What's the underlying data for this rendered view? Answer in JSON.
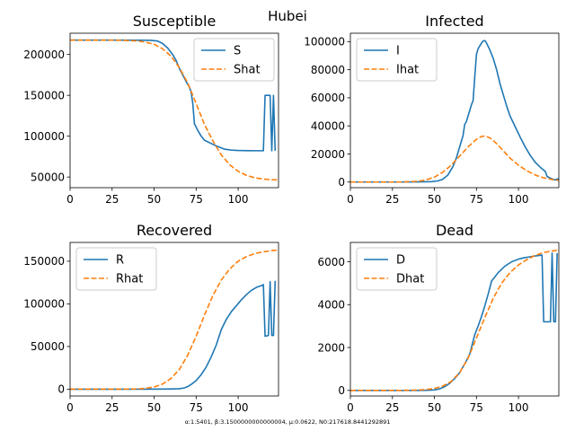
{
  "figure": {
    "suptitle": "Hubei",
    "footnote": "α:1.5401, β:3.1500000000000004, μ:0.0622, N0:217618.8441292891"
  },
  "colors": {
    "observed": "#1f77b4",
    "fitted": "#ff7f0e"
  },
  "chart_data": [
    {
      "type": "line",
      "title": "Susceptible",
      "xlim": [
        0,
        124
      ],
      "ylim": [
        37000,
        226000
      ],
      "xticks": [
        0,
        25,
        50,
        75,
        100
      ],
      "yticks": [
        50000,
        100000,
        150000,
        200000
      ],
      "legend_position": "top-right",
      "series": [
        {
          "name": "S",
          "style": "solid",
          "points": [
            [
              0,
              217600
            ],
            [
              10,
              217600
            ],
            [
              20,
              217600
            ],
            [
              30,
              217600
            ],
            [
              40,
              217500
            ],
            [
              48,
              217300
            ],
            [
              52,
              216500
            ],
            [
              55,
              213500
            ],
            [
              58,
              208000
            ],
            [
              61,
              200000
            ],
            [
              63,
              193000
            ],
            [
              65,
              183000
            ],
            [
              67,
              175000
            ],
            [
              69,
              167000
            ],
            [
              71,
              160000
            ],
            [
              72,
              154000
            ],
            [
              73,
              140000
            ],
            [
              74,
              115000
            ],
            [
              76,
              107000
            ],
            [
              78,
              100000
            ],
            [
              80,
              95000
            ],
            [
              83,
              92000
            ],
            [
              86,
              89000
            ],
            [
              89,
              86500
            ],
            [
              92,
              84000
            ],
            [
              96,
              83000
            ],
            [
              100,
              82500
            ],
            [
              106,
              82300
            ],
            [
              111,
              82200
            ],
            [
              115,
              82200
            ],
            [
              116,
              150000
            ],
            [
              119,
              150000
            ],
            [
              120,
              82200
            ],
            [
              121,
              150000
            ],
            [
              122,
              82200
            ]
          ]
        },
        {
          "name": "Shat",
          "style": "dashed",
          "points": [
            [
              0,
              217600
            ],
            [
              20,
              217600
            ],
            [
              30,
              217400
            ],
            [
              40,
              216500
            ],
            [
              45,
              215000
            ],
            [
              50,
              212500
            ],
            [
              55,
              207000
            ],
            [
              60,
              198000
            ],
            [
              65,
              184000
            ],
            [
              70,
              165000
            ],
            [
              75,
              140000
            ],
            [
              80,
              114000
            ],
            [
              85,
              94000
            ],
            [
              90,
              77000
            ],
            [
              95,
              65000
            ],
            [
              100,
              57000
            ],
            [
              105,
              52000
            ],
            [
              110,
              49000
            ],
            [
              115,
              47500
            ],
            [
              120,
              46800
            ],
            [
              124,
              46500
            ]
          ]
        }
      ]
    },
    {
      "type": "line",
      "title": "Infected",
      "xlim": [
        0,
        124
      ],
      "ylim": [
        -4000,
        106000
      ],
      "xticks": [
        0,
        25,
        50,
        75,
        100
      ],
      "yticks": [
        0,
        20000,
        40000,
        60000,
        80000,
        100000
      ],
      "legend_position": "top-left",
      "series": [
        {
          "name": "I",
          "style": "solid",
          "points": [
            [
              0,
              0
            ],
            [
              20,
              0
            ],
            [
              30,
              0
            ],
            [
              40,
              100
            ],
            [
              48,
              300
            ],
            [
              52,
              800
            ],
            [
              55,
              2000
            ],
            [
              58,
              5000
            ],
            [
              61,
              11000
            ],
            [
              63,
              17000
            ],
            [
              65,
              25000
            ],
            [
              67,
              33000
            ],
            [
              68,
              41000
            ],
            [
              69,
              43000
            ],
            [
              70,
              47000
            ],
            [
              71,
              51000
            ],
            [
              72,
              55000
            ],
            [
              73,
              58000
            ],
            [
              74,
              75000
            ],
            [
              75,
              91000
            ],
            [
              76,
              95000
            ],
            [
              78,
              99000
            ],
            [
              79,
              100500
            ],
            [
              80,
              100800
            ],
            [
              81,
              99000
            ],
            [
              83,
              94000
            ],
            [
              85,
              88000
            ],
            [
              87,
              80000
            ],
            [
              89,
              70000
            ],
            [
              91,
              62000
            ],
            [
              93,
              54000
            ],
            [
              95,
              47000
            ],
            [
              98,
              39500
            ],
            [
              101,
              32000
            ],
            [
              104,
              25000
            ],
            [
              107,
              19000
            ],
            [
              110,
              14000
            ],
            [
              113,
              10500
            ],
            [
              116,
              7500
            ],
            [
              117,
              4000
            ],
            [
              120,
              2200
            ],
            [
              122,
              1500
            ],
            [
              123,
              2200
            ],
            [
              124,
              2000
            ]
          ]
        },
        {
          "name": "Ihat",
          "style": "dashed",
          "points": [
            [
              0,
              0
            ],
            [
              30,
              0
            ],
            [
              40,
              500
            ],
            [
              45,
              1500
            ],
            [
              50,
              3500
            ],
            [
              55,
              7000
            ],
            [
              60,
              12000
            ],
            [
              65,
              18500
            ],
            [
              70,
              25000
            ],
            [
              75,
              30500
            ],
            [
              78,
              32500
            ],
            [
              80,
              32800
            ],
            [
              83,
              31500
            ],
            [
              86,
              28500
            ],
            [
              90,
              23500
            ],
            [
              95,
              17000
            ],
            [
              100,
              12000
            ],
            [
              105,
              8000
            ],
            [
              110,
              5000
            ],
            [
              115,
              3000
            ],
            [
              120,
              1800
            ],
            [
              124,
              1200
            ]
          ]
        }
      ]
    },
    {
      "type": "line",
      "title": "Recovered",
      "xlim": [
        0,
        124
      ],
      "ylim": [
        -8000,
        172000
      ],
      "xticks": [
        0,
        25,
        50,
        75,
        100
      ],
      "yticks": [
        0,
        50000,
        100000,
        150000
      ],
      "legend_position": "top-left",
      "series": [
        {
          "name": "R",
          "style": "solid",
          "points": [
            [
              0,
              0
            ],
            [
              20,
              0
            ],
            [
              40,
              0
            ],
            [
              55,
              50
            ],
            [
              60,
              200
            ],
            [
              65,
              500
            ],
            [
              68,
              1500
            ],
            [
              70,
              3000
            ],
            [
              72,
              5500
            ],
            [
              75,
              10000
            ],
            [
              78,
              17000
            ],
            [
              81,
              26000
            ],
            [
              84,
              38000
            ],
            [
              87,
              52000
            ],
            [
              90,
              70000
            ],
            [
              93,
              82000
            ],
            [
              96,
              91000
            ],
            [
              99,
              98000
            ],
            [
              102,
              105000
            ],
            [
              105,
              111000
            ],
            [
              108,
              116000
            ],
            [
              111,
              119500
            ],
            [
              114,
              121500
            ],
            [
              115,
              122500
            ],
            [
              116,
              62000
            ],
            [
              118,
              63000
            ],
            [
              119,
              126000
            ],
            [
              120,
              63000
            ],
            [
              121,
              63000
            ],
            [
              122,
              127000
            ]
          ]
        },
        {
          "name": "Rhat",
          "style": "dashed",
          "points": [
            [
              0,
              0
            ],
            [
              30,
              0
            ],
            [
              40,
              300
            ],
            [
              45,
              1000
            ],
            [
              50,
              2500
            ],
            [
              55,
              6000
            ],
            [
              60,
              12500
            ],
            [
              65,
              23000
            ],
            [
              70,
              40000
            ],
            [
              75,
              62000
            ],
            [
              80,
              87000
            ],
            [
              85,
              110000
            ],
            [
              90,
              128000
            ],
            [
              95,
              141000
            ],
            [
              100,
              150000
            ],
            [
              105,
              155500
            ],
            [
              110,
              159000
            ],
            [
              115,
              161000
            ],
            [
              120,
              162500
            ],
            [
              124,
              163000
            ]
          ]
        }
      ]
    },
    {
      "type": "line",
      "title": "Dead",
      "xlim": [
        0,
        124
      ],
      "ylim": [
        -260,
        6900
      ],
      "xticks": [
        0,
        25,
        50,
        75,
        100
      ],
      "yticks": [
        0,
        2000,
        4000,
        6000
      ],
      "legend_position": "top-left",
      "series": [
        {
          "name": "D",
          "style": "solid",
          "points": [
            [
              0,
              0
            ],
            [
              20,
              0
            ],
            [
              40,
              0
            ],
            [
              45,
              5
            ],
            [
              50,
              20
            ],
            [
              53,
              70
            ],
            [
              56,
              170
            ],
            [
              59,
              330
            ],
            [
              62,
              550
            ],
            [
              65,
              830
            ],
            [
              67,
              1100
            ],
            [
              69,
              1380
            ],
            [
              71,
              1700
            ],
            [
              72,
              2000
            ],
            [
              73,
              2300
            ],
            [
              74,
              2600
            ],
            [
              76,
              3000
            ],
            [
              78,
              3450
            ],
            [
              80,
              3950
            ],
            [
              82,
              4500
            ],
            [
              84,
              5100
            ],
            [
              86,
              5300
            ],
            [
              88,
              5500
            ],
            [
              90,
              5650
            ],
            [
              92,
              5800
            ],
            [
              94,
              5900
            ],
            [
              96,
              6000
            ],
            [
              98,
              6060
            ],
            [
              100,
              6120
            ],
            [
              103,
              6180
            ],
            [
              106,
              6220
            ],
            [
              109,
              6260
            ],
            [
              112,
              6290
            ],
            [
              114,
              6310
            ],
            [
              115,
              3200
            ],
            [
              117,
              3200
            ],
            [
              119,
              3200
            ],
            [
              120,
              6400
            ],
            [
              121,
              3200
            ],
            [
              122,
              3200
            ],
            [
              123,
              6400
            ]
          ]
        },
        {
          "name": "Dhat",
          "style": "dashed",
          "points": [
            [
              0,
              0
            ],
            [
              30,
              0
            ],
            [
              40,
              15
            ],
            [
              45,
              40
            ],
            [
              50,
              90
            ],
            [
              55,
              200
            ],
            [
              60,
              420
            ],
            [
              65,
              830
            ],
            [
              70,
              1500
            ],
            [
              75,
              2450
            ],
            [
              80,
              3400
            ],
            [
              85,
              4300
            ],
            [
              90,
              5000
            ],
            [
              95,
              5500
            ],
            [
              100,
              5850
            ],
            [
              105,
              6100
            ],
            [
              110,
              6300
            ],
            [
              115,
              6430
            ],
            [
              120,
              6500
            ],
            [
              124,
              6550
            ]
          ]
        }
      ]
    }
  ]
}
